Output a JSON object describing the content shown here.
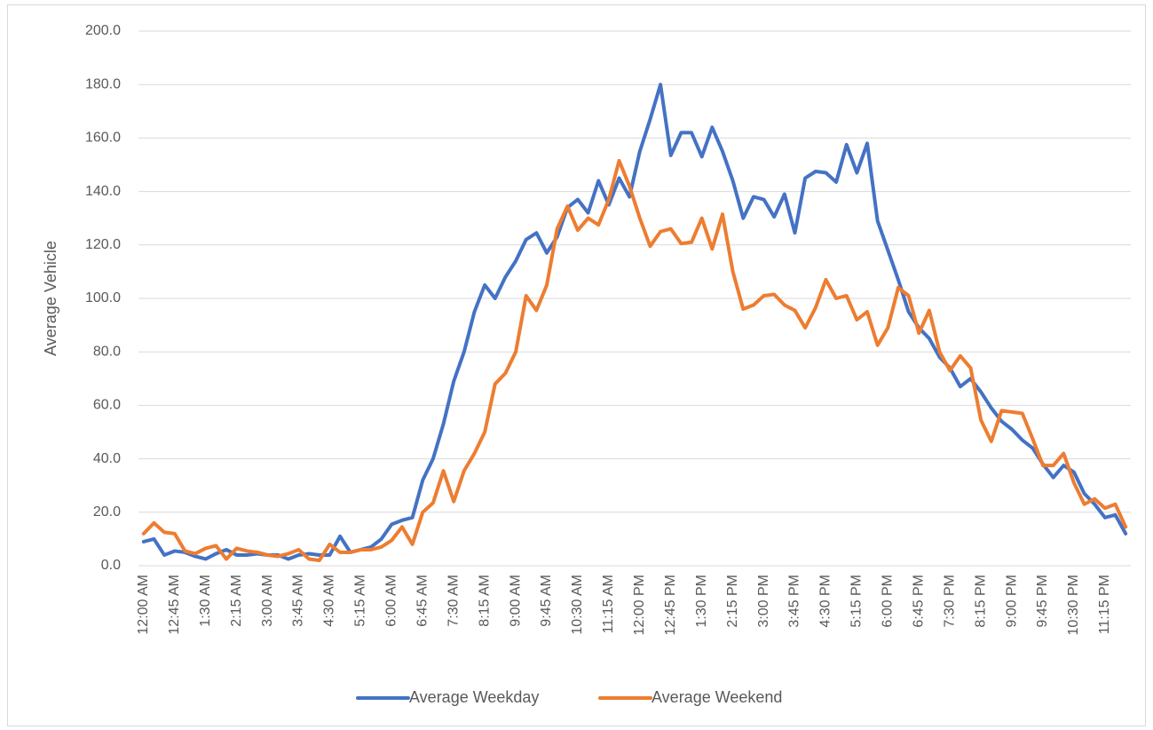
{
  "chart_data": {
    "type": "line",
    "y_label": "Average Vehicle",
    "categories": [
      "12:00 AM",
      null,
      null,
      "12:45 AM",
      null,
      null,
      "1:30 AM",
      null,
      null,
      "2:15 AM",
      null,
      null,
      "3:00 AM",
      null,
      null,
      "3:45 AM",
      null,
      null,
      "4:30 AM",
      null,
      null,
      "5:15 AM",
      null,
      null,
      "6:00 AM",
      null,
      null,
      "6:45 AM",
      null,
      null,
      "7:30 AM",
      null,
      null,
      "8:15 AM",
      null,
      null,
      "9:00 AM",
      null,
      null,
      "9:45 AM",
      null,
      null,
      "10:30 AM",
      null,
      null,
      "11:15 AM",
      null,
      null,
      "12:00 PM",
      null,
      null,
      "12:45 PM",
      null,
      null,
      "1:30 PM",
      null,
      null,
      "2:15 PM",
      null,
      null,
      "3:00 PM",
      null,
      null,
      "3:45 PM",
      null,
      null,
      "4:30 PM",
      null,
      null,
      "5:15 PM",
      null,
      null,
      "6:00 PM",
      null,
      null,
      "6:45 PM",
      null,
      null,
      "7:30 PM",
      null,
      null,
      "8:15 PM",
      null,
      null,
      "9:00 PM",
      null,
      null,
      "9:45 PM",
      null,
      null,
      "10:30 PM",
      null,
      null,
      "11:15 PM",
      null,
      null
    ],
    "series": [
      {
        "name": "Average Weekday",
        "color": "#4472c4",
        "values": [
          9,
          10,
          4,
          5.5,
          5,
          3.5,
          2.5,
          4.5,
          6,
          4,
          4,
          4.5,
          4,
          4,
          2.5,
          4,
          4.5,
          4,
          4,
          11,
          5,
          6,
          7,
          10,
          15.5,
          17,
          18,
          32,
          40,
          53,
          69,
          80,
          95,
          105,
          100,
          108,
          114,
          122,
          124.5,
          117,
          123,
          134,
          137,
          132,
          144,
          135,
          145,
          138,
          155,
          167,
          180,
          153.5,
          162,
          162,
          153,
          164,
          155,
          144,
          130,
          138,
          137,
          130.5,
          139,
          124.5,
          145,
          147.5,
          147,
          143.5,
          157.5,
          147,
          158,
          129,
          118,
          107,
          95,
          89,
          85,
          78,
          74,
          67,
          70,
          65,
          59,
          54,
          51,
          47,
          44,
          38,
          33,
          37.5,
          35,
          27,
          23,
          18,
          19,
          12
        ]
      },
      {
        "name": "Average Weekend",
        "color": "#ed7d31",
        "values": [
          12,
          16,
          12.5,
          12,
          5.5,
          4.5,
          6.5,
          7.5,
          2.5,
          6.5,
          5.5,
          5,
          4,
          3.5,
          4.5,
          6,
          2.5,
          2,
          8,
          5,
          5,
          6,
          6,
          7,
          9.5,
          14.5,
          8,
          20,
          23.5,
          35.5,
          24,
          35.5,
          42,
          50,
          68,
          72,
          80,
          101,
          95.5,
          105,
          126,
          134.5,
          125.5,
          130,
          127.5,
          137,
          151.5,
          142,
          130,
          119.5,
          125,
          126,
          120.5,
          121,
          130,
          118.5,
          131.5,
          110,
          96,
          97.5,
          101,
          101.5,
          97.5,
          95.5,
          89,
          96.5,
          107,
          100,
          101,
          92,
          95,
          82.5,
          89,
          104,
          101,
          87,
          95.5,
          80,
          73,
          78.5,
          74,
          54.5,
          46.5,
          58,
          57.5,
          57,
          47.5,
          37.5,
          37.5,
          42,
          31,
          23,
          25,
          21.5,
          23,
          14.5
        ]
      }
    ],
    "ylim": [
      0,
      200
    ],
    "yticks": [
      {
        "value": 0,
        "label": "0.0"
      },
      {
        "value": 20,
        "label": "20.0"
      },
      {
        "value": 40,
        "label": "40.0"
      },
      {
        "value": 60,
        "label": "60.0"
      },
      {
        "value": 80,
        "label": "80.0"
      },
      {
        "value": 100,
        "label": "100.0"
      },
      {
        "value": 120,
        "label": "120.0"
      },
      {
        "value": 140,
        "label": "140.0"
      },
      {
        "value": 160,
        "label": "160.0"
      },
      {
        "value": 180,
        "label": "180.0"
      },
      {
        "value": 200,
        "label": "200.0"
      }
    ],
    "grid": true,
    "legend": "bottom"
  }
}
